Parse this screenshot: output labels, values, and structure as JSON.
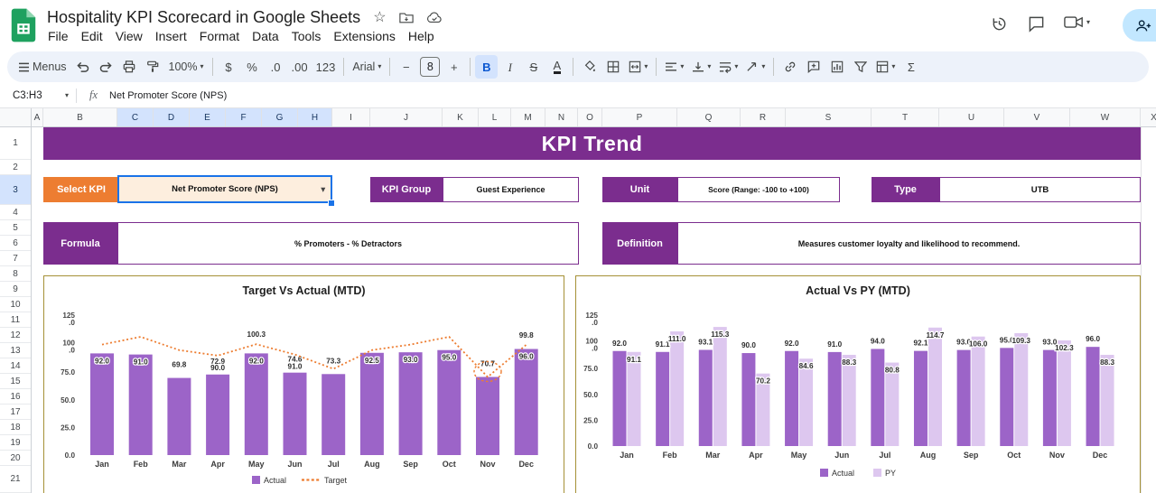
{
  "header": {
    "doc_title": "Hospitality KPI Scorecard in Google Sheets",
    "menu_items": [
      "File",
      "Edit",
      "View",
      "Insert",
      "Format",
      "Data",
      "Tools",
      "Extensions",
      "Help"
    ],
    "share_label": "S"
  },
  "toolbar": {
    "items": [
      {
        "name": "menus-button",
        "icon": "hamburger-icon",
        "label": "Menus"
      },
      {
        "name": "undo-button",
        "icon": "undo-icon"
      },
      {
        "name": "redo-button",
        "icon": "redo-icon"
      },
      {
        "name": "print-button",
        "icon": "printer-icon"
      },
      {
        "name": "paint-format-button",
        "icon": "paint-roller-icon"
      },
      {
        "name": "zoom-select",
        "label": "100%",
        "caret": true
      },
      {
        "divider": true
      },
      {
        "name": "currency-format-button",
        "glyph": "$"
      },
      {
        "name": "percent-format-button",
        "glyph": "%"
      },
      {
        "name": "decrease-decimals-button",
        "glyph": ".0"
      },
      {
        "name": "increase-decimals-button",
        "glyph": ".00"
      },
      {
        "name": "more-formats-button",
        "glyph": "123"
      },
      {
        "divider": true
      },
      {
        "name": "font-select",
        "label": "Arial",
        "caret": true
      },
      {
        "divider": true
      },
      {
        "name": "decrease-font-size-button",
        "glyph": "−"
      },
      {
        "name": "font-size-input",
        "label": "8",
        "boxed": true
      },
      {
        "name": "increase-font-size-button",
        "glyph": "+"
      },
      {
        "divider": true
      },
      {
        "name": "bold-button",
        "glyph": "B",
        "style": "bold",
        "active": true
      },
      {
        "name": "italic-button",
        "glyph": "I",
        "style": "italic"
      },
      {
        "name": "strikethrough-button",
        "glyph": "S",
        "style": "strike"
      },
      {
        "name": "text-color-button",
        "glyph": "A",
        "style": "underlineA"
      },
      {
        "divider": true
      },
      {
        "name": "fill-color-button",
        "icon": "fill-color-icon"
      },
      {
        "name": "borders-button",
        "icon": "borders-icon"
      },
      {
        "name": "merge-cells-button",
        "icon": "merge-cells-icon",
        "caret": true
      },
      {
        "divider": true
      },
      {
        "name": "horizontal-align-button",
        "icon": "align-left-icon",
        "caret": true
      },
      {
        "name": "vertical-align-button",
        "icon": "vertical-align-icon",
        "caret": true
      },
      {
        "name": "text-wrap-button",
        "icon": "text-wrap-icon",
        "caret": true
      },
      {
        "name": "text-rotation-button",
        "icon": "text-rotation-icon",
        "caret": true
      },
      {
        "divider": true
      },
      {
        "name": "insert-link-button",
        "icon": "link-icon"
      },
      {
        "name": "insert-comment-button",
        "icon": "add-comment-icon"
      },
      {
        "name": "insert-chart-button",
        "icon": "insert-chart-icon"
      },
      {
        "name": "create-filter-button",
        "icon": "filter-icon"
      },
      {
        "name": "table-views-button",
        "icon": "table-views-icon",
        "caret": true
      },
      {
        "name": "functions-button",
        "glyph": "Σ"
      }
    ]
  },
  "formula_bar": {
    "cell_reference": "C3:H3",
    "fx_label": "fx",
    "value": "Net Promoter Score (NPS)"
  },
  "grid": {
    "column_letters": [
      "A",
      "B",
      "C",
      "D",
      "E",
      "F",
      "G",
      "H",
      "I",
      "J",
      "K",
      "L",
      "M",
      "N",
      "O",
      "P",
      "Q",
      "R",
      "S",
      "T",
      "U",
      "V",
      "W",
      "X"
    ],
    "selected_columns": [
      "C",
      "D",
      "E",
      "F",
      "G",
      "H"
    ],
    "row_numbers": [
      "1",
      "2",
      "3",
      "4",
      "5",
      "6",
      "7",
      "8",
      "9",
      "10",
      "11",
      "12",
      "13",
      "14",
      "15",
      "16",
      "17",
      "18",
      "19",
      "20",
      "21"
    ],
    "selected_row": "3"
  },
  "dashboard": {
    "banner_title": "KPI Trend",
    "select_kpi_label": "Select KPI",
    "select_kpi_value": "Net Promoter Score (NPS)",
    "kpi_group_label": "KPI Group",
    "kpi_group_value": "Guest Experience",
    "unit_label": "Unit",
    "unit_value": "Score (Range: -100 to +100)",
    "type_label": "Type",
    "type_value": "UTB",
    "formula_label": "Formula",
    "formula_value": "% Promoters - % Detractors",
    "definition_label": "Definition",
    "definition_value": "Measures customer loyalty and likelihood to recommend."
  },
  "colors": {
    "purple": "#7b2d8e",
    "orange": "#ed7d31",
    "bar_actual": "#9c64c8",
    "bar_py": "#ddc7ef",
    "target_line": "#ed7d31",
    "selection_blue": "#1a73e8",
    "panel_border": "#a59136",
    "share_pill": "#c2e7ff"
  },
  "chart_data": [
    {
      "type": "bar",
      "title": "Target Vs Actual (MTD)",
      "categories": [
        "Jan",
        "Feb",
        "Mar",
        "Apr",
        "May",
        "Jun",
        "Jul",
        "Aug",
        "Sep",
        "Oct",
        "Nov",
        "Dec"
      ],
      "series": [
        {
          "name": "Actual",
          "type": "bar",
          "color": "#9c64c8",
          "values": [
            92.0,
            91.0,
            69.8,
            72.9,
            92.0,
            74.6,
            73.3,
            92.5,
            93.0,
            95.0,
            70.7,
            96.0
          ]
        },
        {
          "name": "Target",
          "type": "dashed-line",
          "color": "#ed7d31",
          "values": [
            100.0,
            107.0,
            95.0,
            90.0,
            100.3,
            91.0,
            78.0,
            95.0,
            100.0,
            107.0,
            70.7,
            99.8
          ]
        }
      ],
      "line_point_labels": [
        {
          "category": "Apr",
          "text": "90.0",
          "placement": "below"
        },
        {
          "category": "May",
          "text": "100.3",
          "placement": "above"
        },
        {
          "category": "Jun",
          "text": "91.0",
          "placement": "below"
        },
        {
          "category": "Dec",
          "text": "99.8",
          "placement": "above"
        }
      ],
      "highlight": {
        "category": "Nov",
        "shape": "dashed-circle"
      },
      "ylim": [
        0,
        125
      ],
      "y_tick_labels": [
        "125.0",
        "100.0",
        "75.0",
        "50.0",
        "25.0",
        "0.0"
      ],
      "legend": [
        "Actual",
        "Target"
      ],
      "legend_position": "bottom",
      "grid": false
    },
    {
      "type": "bar",
      "title": "Actual Vs PY (MTD)",
      "categories": [
        "Jan",
        "Feb",
        "Mar",
        "Apr",
        "May",
        "Jun",
        "Jul",
        "Aug",
        "Sep",
        "Oct",
        "Nov",
        "Dec"
      ],
      "series": [
        {
          "name": "Actual",
          "type": "bar",
          "color": "#9c64c8",
          "values": [
            92.0,
            91.1,
            93.1,
            90.0,
            92.0,
            91.0,
            94.0,
            92.1,
            93.0,
            95.0,
            93.0,
            96.0
          ]
        },
        {
          "name": "PY",
          "type": "bar",
          "color": "#ddc7ef",
          "values": [
            91.1,
            111.0,
            115.3,
            70.2,
            84.6,
            88.3,
            80.8,
            114.7,
            106.0,
            109.3,
            102.3,
            88.3
          ]
        }
      ],
      "ylim": [
        0,
        125
      ],
      "y_tick_labels": [
        "125.0",
        "100.0",
        "75.0",
        "50.0",
        "25.0",
        "0.0"
      ],
      "legend": [
        "Actual",
        "PY"
      ],
      "legend_position": "bottom",
      "grid": false
    }
  ]
}
